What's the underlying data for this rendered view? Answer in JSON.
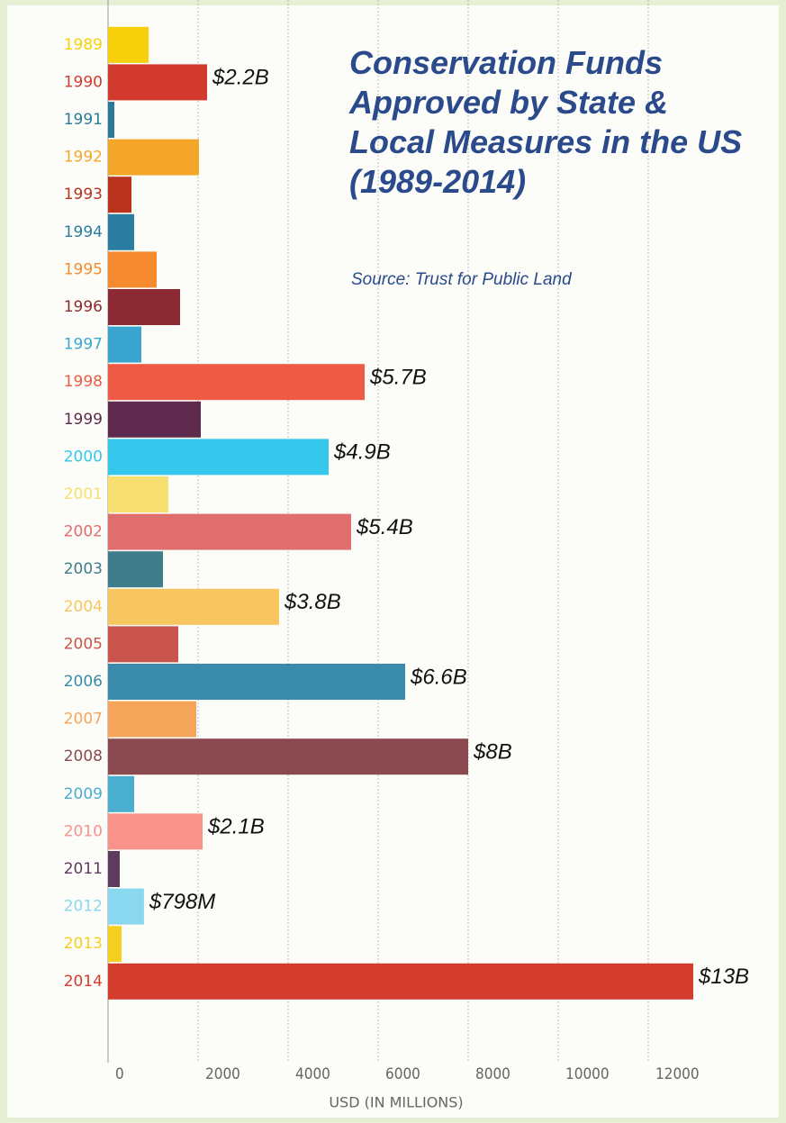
{
  "chart_data": {
    "type": "hbar",
    "title": "Conservation Funds Approved by State & Local Measures in the US (1989-2014)",
    "subtitle": "Source: Trust for Public Land",
    "x_label": "USD (IN MILLIONS)",
    "categories": [
      "1989",
      "1990",
      "1991",
      "1992",
      "1993",
      "1994",
      "1995",
      "1996",
      "1997",
      "1998",
      "1999",
      "2000",
      "2001",
      "2002",
      "2003",
      "2004",
      "2005",
      "2006",
      "2007",
      "2008",
      "2009",
      "2010",
      "2011",
      "2012",
      "2013",
      "2014"
    ],
    "values": [
      900,
      2200,
      140,
      2020,
      520,
      580,
      1080,
      1600,
      740,
      5700,
      2060,
      4900,
      1340,
      5400,
      1220,
      3800,
      1560,
      6600,
      1960,
      8000,
      580,
      2100,
      260,
      798,
      300,
      13000
    ],
    "value_labels": [
      null,
      "$2.2B",
      null,
      null,
      null,
      null,
      null,
      null,
      null,
      "$5.7B",
      null,
      "$4.9B",
      null,
      "$5.4B",
      null,
      "$3.8B",
      null,
      "$6.6B",
      null,
      "$8B",
      null,
      "$2.1B",
      null,
      "$798M",
      null,
      "$13B"
    ],
    "colors": [
      "#f7cf0a",
      "#d23a2e",
      "#2b7a99",
      "#f4a62a",
      "#b8321e",
      "#2a7da0",
      "#f58a2e",
      "#8b2a32",
      "#3aa6d0",
      "#ef5a44",
      "#5e2a4e",
      "#35c7ec",
      "#f7e070",
      "#e06e6c",
      "#3f7d8a",
      "#f7c65e",
      "#c9544c",
      "#3a8aaa",
      "#f4a55a",
      "#8a4a50",
      "#4aaed0",
      "#f8928a",
      "#5e3a5e",
      "#8ad8f0",
      "#f5d020",
      "#d43c2e"
    ],
    "xlim": [
      0,
      14800
    ],
    "xticks": [
      0,
      2000,
      4000,
      6000,
      8000,
      10000,
      12000
    ],
    "grid": true
  }
}
